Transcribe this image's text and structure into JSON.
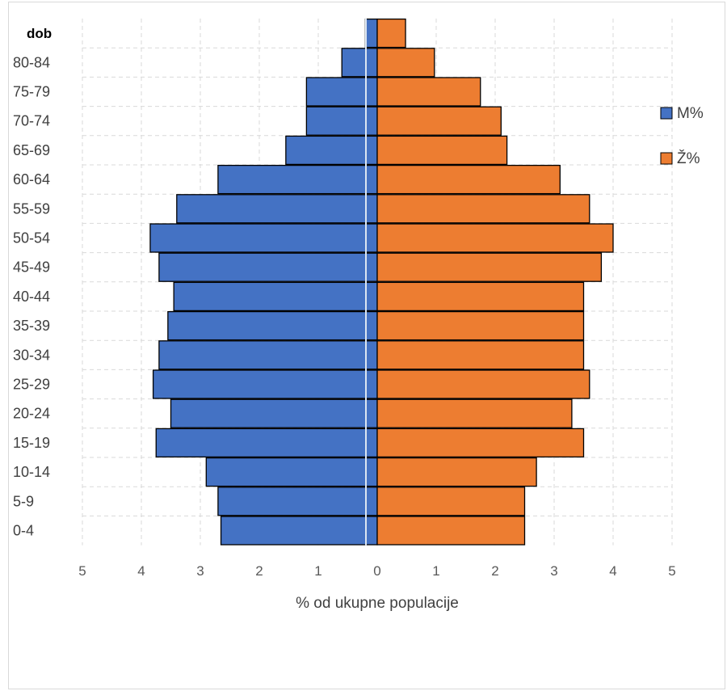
{
  "chart_data": {
    "type": "bar",
    "orientation": "horizontal-population-pyramid",
    "y_axis_title": "dob",
    "categories": [
      "0-4",
      "5-9",
      "10-14",
      "15-19",
      "20-24",
      "25-29",
      "30-34",
      "35-39",
      "40-44",
      "45-49",
      "50-54",
      "55-59",
      "60-64",
      "65-69",
      "70-74",
      "75-79",
      "80-84",
      ""
    ],
    "series": [
      {
        "name": "M%",
        "color": "#4472C4",
        "direction": "left",
        "values": [
          2.65,
          2.7,
          2.9,
          3.75,
          3.5,
          3.8,
          3.7,
          3.55,
          3.45,
          3.7,
          3.85,
          3.4,
          2.7,
          1.55,
          1.2,
          1.2,
          0.6,
          0.2
        ]
      },
      {
        "name": "Ž%",
        "color": "#ED7D31",
        "direction": "right",
        "values": [
          2.5,
          2.5,
          2.7,
          3.5,
          3.3,
          3.6,
          3.5,
          3.5,
          3.5,
          3.8,
          4.0,
          3.6,
          3.1,
          2.2,
          2.1,
          1.75,
          0.97,
          0.48
        ]
      }
    ],
    "x_ticks": [
      "5",
      "4",
      "3",
      "2",
      "1",
      "0",
      "1",
      "2",
      "3",
      "4",
      "5"
    ],
    "xlim": [
      -5,
      5
    ],
    "xlabel": "% od ukupne populacije",
    "grid": true,
    "legend_position": "right"
  }
}
